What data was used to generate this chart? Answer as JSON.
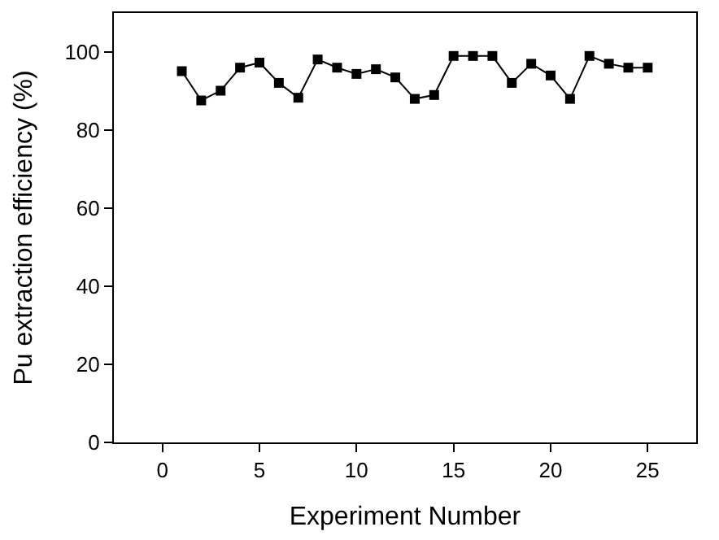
{
  "chart_data": {
    "type": "line",
    "xlabel": "Experiment Number",
    "ylabel": "Pu extraction efficiency (%)",
    "x": [
      1,
      2,
      3,
      4,
      5,
      6,
      7,
      8,
      9,
      10,
      11,
      12,
      13,
      14,
      15,
      16,
      17,
      18,
      19,
      20,
      21,
      22,
      23,
      24,
      25
    ],
    "series": [
      {
        "color": "#000000",
        "values": [
          95.1,
          87.6,
          90.1,
          96,
          97.3,
          92.1,
          88.3,
          98.1,
          96,
          94.4,
          95.6,
          93.5,
          88,
          89,
          99,
          99,
          99,
          92.1,
          97,
          94,
          88,
          99,
          97,
          96,
          96
        ]
      }
    ],
    "xlim": [
      -2.5,
      27.5
    ],
    "xticks": [
      0,
      5,
      10,
      15,
      20,
      25
    ],
    "ylim": [
      0,
      110
    ],
    "yticks": [
      0,
      20,
      40,
      60,
      80,
      100
    ],
    "marker": "square",
    "line_style": "solid"
  }
}
